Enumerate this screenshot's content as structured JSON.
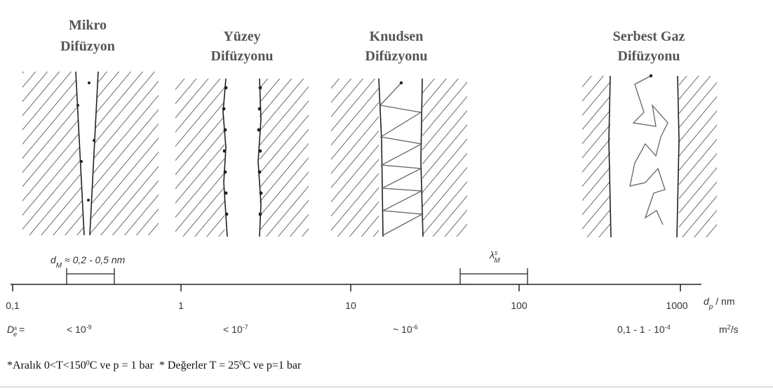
{
  "panels": [
    {
      "title_lines": [
        "Mikro",
        "Difüzyon"
      ]
    },
    {
      "title_lines": [
        "Yüzey",
        "Difüzyonu"
      ]
    },
    {
      "title_lines": [
        "Knudsen",
        "Difüzyonu"
      ]
    },
    {
      "title_lines": [
        "Serbest Gaz",
        "Difüzyonu"
      ]
    }
  ],
  "markers": {
    "dm": {
      "symbol": "d",
      "sub": "M",
      "text": " ≈ 0,2 - 0,5 nm"
    },
    "lambda": {
      "symbol": "λ",
      "sup": "s",
      "sub": "M"
    }
  },
  "axis": {
    "ticks": [
      "0,1",
      "1",
      "10",
      "100",
      "1000"
    ],
    "label": {
      "symbol": "d",
      "sub": "p",
      "text": " / nm"
    }
  },
  "diffusion": {
    "label": {
      "symbol": "D",
      "sup": "s",
      "sub": "e",
      "text": "="
    },
    "values": [
      {
        "text": "< 10",
        "sup": "-9"
      },
      {
        "text": "< 10",
        "sup": "-7"
      },
      {
        "text": "~ 10",
        "sup": "-6"
      },
      {
        "text": "0,1 - 1 · 10",
        "sup": "-4"
      }
    ],
    "unit": {
      "text": "m",
      "sup": "2",
      "after": "/s"
    }
  },
  "footnote": {
    "parts": [
      "*Aralık 0<T<150",
      "0",
      "C ve p = 1 bar  * Değerler T = 25",
      "0",
      "C ve p=1 bar"
    ]
  }
}
